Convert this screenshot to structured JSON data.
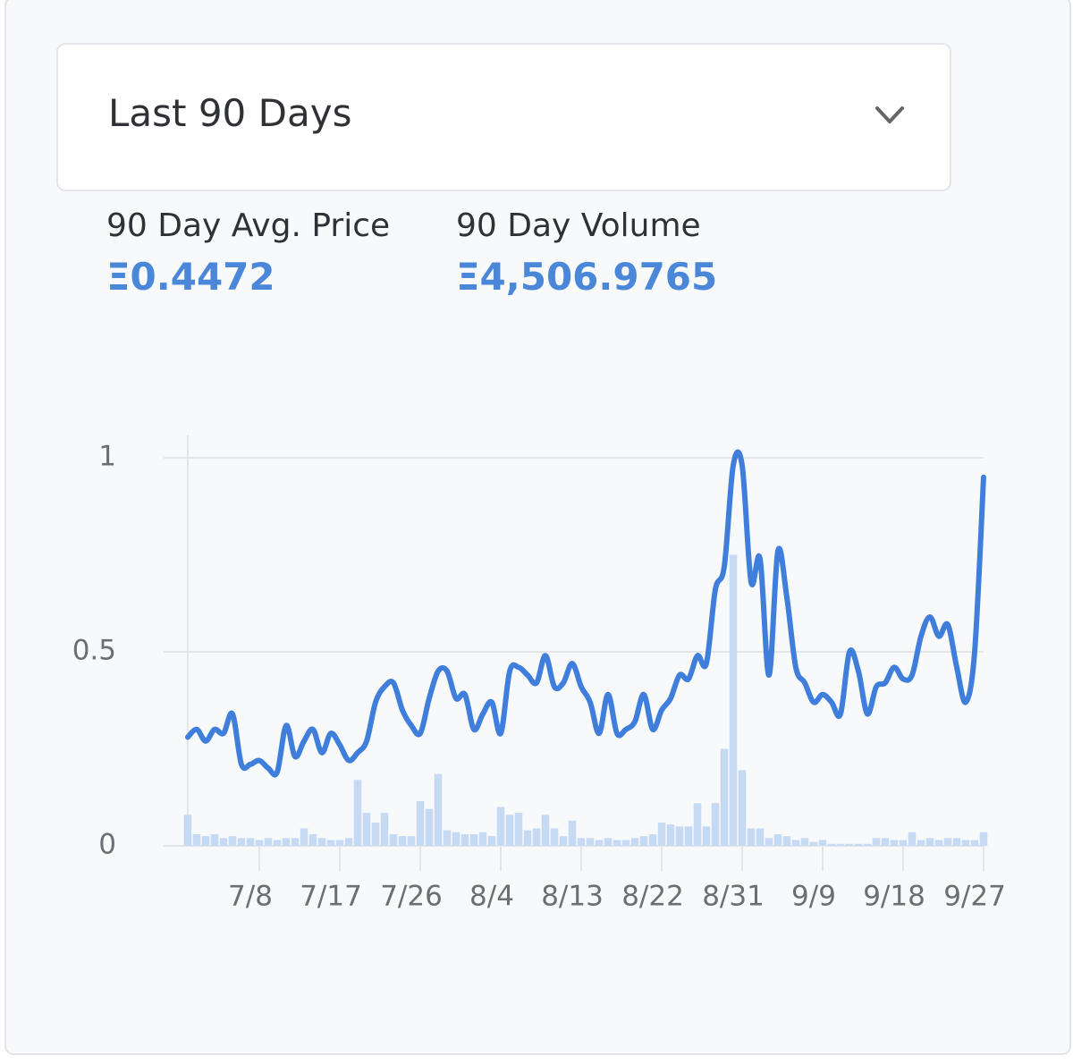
{
  "dropdown": {
    "selected": "Last 90 Days"
  },
  "stats": [
    {
      "label": "90 Day Avg. Price",
      "value": "Ξ0.4472"
    },
    {
      "label": "90 Day Volume",
      "value": "Ξ4,506.9765"
    }
  ],
  "chart_data": {
    "type": "line",
    "categories": [
      null,
      null,
      null,
      null,
      null,
      null,
      null,
      null,
      "7/8",
      null,
      null,
      null,
      null,
      null,
      null,
      null,
      null,
      "7/17",
      null,
      null,
      null,
      null,
      null,
      null,
      null,
      null,
      "7/26",
      null,
      null,
      null,
      null,
      null,
      null,
      null,
      null,
      "8/4",
      null,
      null,
      null,
      null,
      null,
      null,
      null,
      null,
      "8/13",
      null,
      null,
      null,
      null,
      null,
      null,
      null,
      null,
      "8/22",
      null,
      null,
      null,
      null,
      null,
      null,
      null,
      null,
      "8/31",
      null,
      null,
      null,
      null,
      null,
      null,
      null,
      null,
      "9/9",
      null,
      null,
      null,
      null,
      null,
      null,
      null,
      null,
      "9/18",
      null,
      null,
      null,
      null,
      null,
      null,
      null,
      null,
      "9/27"
    ],
    "series": [
      {
        "type": "line",
        "color": "#3f7fdb",
        "values": [
          0.28,
          0.3,
          0.27,
          0.3,
          0.29,
          0.34,
          0.21,
          0.21,
          0.22,
          0.2,
          0.19,
          0.31,
          0.23,
          0.27,
          0.3,
          0.24,
          0.29,
          0.26,
          0.22,
          0.24,
          0.27,
          0.37,
          0.41,
          0.42,
          0.35,
          0.31,
          0.29,
          0.38,
          0.45,
          0.45,
          0.38,
          0.39,
          0.3,
          0.34,
          0.37,
          0.29,
          0.45,
          0.46,
          0.44,
          0.42,
          0.49,
          0.41,
          0.42,
          0.47,
          0.41,
          0.37,
          0.29,
          0.39,
          0.29,
          0.3,
          0.32,
          0.39,
          0.3,
          0.35,
          0.38,
          0.44,
          0.43,
          0.49,
          0.47,
          0.66,
          0.72,
          0.98,
          0.98,
          0.68,
          0.74,
          0.44,
          0.76,
          0.64,
          0.46,
          0.42,
          0.37,
          0.39,
          0.37,
          0.34,
          0.5,
          0.45,
          0.34,
          0.41,
          0.42,
          0.46,
          0.43,
          0.44,
          0.54,
          0.59,
          0.54,
          0.57,
          0.46,
          0.37,
          0.5,
          0.95
        ]
      },
      {
        "type": "bar",
        "color": "#c6daf3",
        "values": [
          0.08,
          0.03,
          0.025,
          0.03,
          0.02,
          0.025,
          0.02,
          0.02,
          0.015,
          0.02,
          0.015,
          0.02,
          0.02,
          0.045,
          0.03,
          0.02,
          0.015,
          0.015,
          0.02,
          0.17,
          0.085,
          0.06,
          0.085,
          0.03,
          0.025,
          0.025,
          0.115,
          0.095,
          0.185,
          0.04,
          0.035,
          0.03,
          0.03,
          0.035,
          0.025,
          0.1,
          0.08,
          0.085,
          0.04,
          0.045,
          0.08,
          0.045,
          0.025,
          0.065,
          0.02,
          0.02,
          0.015,
          0.02,
          0.015,
          0.015,
          0.02,
          0.025,
          0.03,
          0.06,
          0.055,
          0.05,
          0.05,
          0.11,
          0.05,
          0.11,
          0.25,
          0.75,
          0.195,
          0.045,
          0.045,
          0.02,
          0.03,
          0.025,
          0.015,
          0.02,
          0.01,
          0.015,
          0.005,
          0.005,
          0.005,
          0.005,
          0.005,
          0.02,
          0.02,
          0.015,
          0.015,
          0.035,
          0.015,
          0.02,
          0.015,
          0.02,
          0.02,
          0.015,
          0.015,
          0.035
        ]
      }
    ],
    "ylim": [
      0,
      1
    ],
    "yticks": [
      0,
      0.5,
      1
    ],
    "grid": true
  }
}
